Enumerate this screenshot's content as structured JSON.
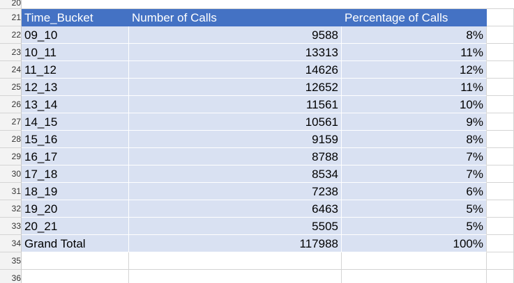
{
  "row_numbers": {
    "top": "20",
    "header": "21",
    "rows": [
      "22",
      "23",
      "24",
      "25",
      "26",
      "27",
      "28",
      "29",
      "30",
      "31",
      "32",
      "33",
      "34"
    ],
    "empty": [
      "35",
      "36"
    ]
  },
  "table": {
    "headers": [
      "Time_Bucket",
      "Number of Calls",
      "Percentage of Calls"
    ],
    "rows": [
      [
        "09_10",
        "9588",
        "8%"
      ],
      [
        "10_11",
        "13313",
        "11%"
      ],
      [
        "11_12",
        "14626",
        "12%"
      ],
      [
        "12_13",
        "12652",
        "11%"
      ],
      [
        "13_14",
        "11561",
        "10%"
      ],
      [
        "14_15",
        "10561",
        "9%"
      ],
      [
        "15_16",
        "9159",
        "8%"
      ],
      [
        "16_17",
        "8788",
        "7%"
      ],
      [
        "17_18",
        "8534",
        "7%"
      ],
      [
        "18_19",
        "7238",
        "6%"
      ],
      [
        "19_20",
        "6463",
        "5%"
      ],
      [
        "20_21",
        "5505",
        "5%"
      ],
      [
        "Grand Total",
        "117988",
        "100%"
      ]
    ]
  },
  "colors": {
    "header_fill": "#4472c4",
    "header_text": "#ffffff",
    "band_fill": "#d9e1f2",
    "grid": "#d4d4d4"
  }
}
